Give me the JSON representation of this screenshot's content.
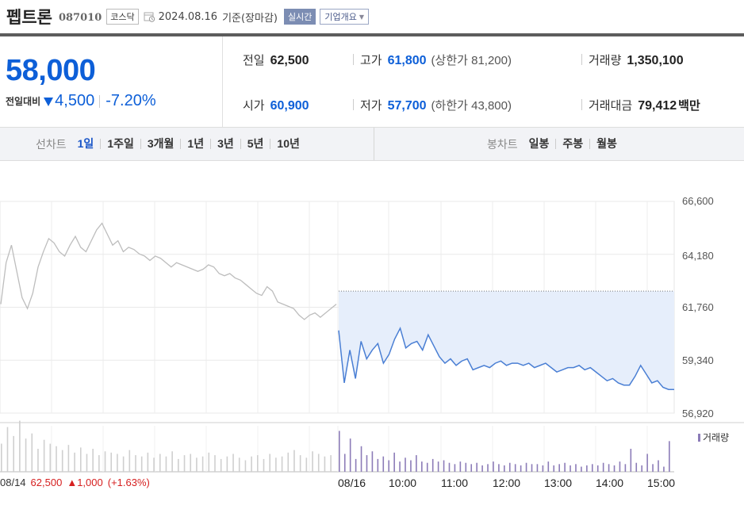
{
  "header": {
    "stock_name": "펩트론",
    "stock_code": "087010",
    "market": "코스닥",
    "date": "2024.08.16",
    "basis": "기준(장마감)",
    "realtime_label": "실시간",
    "company_info_label": "기업개요"
  },
  "price": {
    "current": "58,000",
    "change_label": "전일대비",
    "change_amount": "4,500",
    "change_percent": "-7.20%",
    "direction": "down",
    "color": "#0d5fd8"
  },
  "stats": {
    "prev_close_label": "전일",
    "prev_close": "62,500",
    "high_label": "고가",
    "high": "61,800",
    "upper_limit": "(상한가 81,200)",
    "volume_label": "거래량",
    "volume": "1,350,100",
    "open_label": "시가",
    "open": "60,900",
    "low_label": "저가",
    "low": "57,700",
    "lower_limit": "(하한가 43,800)",
    "value_label": "거래대금",
    "value": "79,412",
    "value_unit": "백만"
  },
  "tabs": {
    "line_chart_label": "선차트",
    "line_chart_periods": [
      "1일",
      "1주일",
      "3개월",
      "1년",
      "3년",
      "5년",
      "10년"
    ],
    "active_period": "1일",
    "candle_chart_label": "봉차트",
    "candle_chart_periods": [
      "일봉",
      "주봉",
      "월봉"
    ]
  },
  "chart_data": {
    "type": "line",
    "y_ticks": [
      "66,600",
      "64,180",
      "61,760",
      "59,340",
      "56,920"
    ],
    "ylim": [
      56920,
      66600
    ],
    "x_ticks": [
      "08/16",
      "10:00",
      "11:00",
      "12:00",
      "13:00",
      "14:00",
      "15:00"
    ],
    "prev_day": {
      "label": "08/14",
      "close": "62,500",
      "change": "1,000",
      "change_percent": "(+1.63%)",
      "color": "#d62020"
    },
    "volume_legend": "거래량",
    "reference_line": 62500,
    "series": [
      {
        "color": "#bdbdbd",
        "values": [
          61900,
          63800,
          64600,
          63400,
          62200,
          61700,
          62400,
          63600,
          64300,
          64900,
          64700,
          64300,
          64100,
          64600,
          65000,
          64500,
          64300,
          64800,
          65300,
          65600,
          65100,
          64600,
          64800,
          64300,
          64500,
          64400,
          64200,
          64100,
          63900,
          64100,
          64000,
          63800,
          63600,
          63800,
          63700,
          63600,
          63500,
          63400,
          63500,
          63700,
          63600,
          63300,
          63200,
          63300,
          63100,
          63000,
          62800,
          62600,
          62400,
          62300,
          62700,
          62500,
          62000,
          61900,
          61800,
          61700,
          61400,
          61200,
          61400,
          61500,
          61300,
          61500,
          61700,
          61900
        ]
      },
      {
        "color": "#4a7fd4",
        "values": [
          60700,
          58300,
          59800,
          58500,
          60200,
          59400,
          59800,
          60100,
          59200,
          59600,
          60300,
          60800,
          59900,
          60100,
          60200,
          59800,
          60500,
          60000,
          59500,
          59200,
          59400,
          59100,
          59300,
          59400,
          58900,
          59000,
          59100,
          59000,
          59200,
          59300,
          59100,
          59200,
          59200,
          59100,
          59200,
          59000,
          59100,
          59200,
          59000,
          58800,
          58900,
          59000,
          59000,
          59100,
          58900,
          59000,
          58800,
          58600,
          58400,
          58500,
          58300,
          58200,
          58200,
          58600,
          59100,
          58700,
          58300,
          58400,
          58100,
          58000,
          58000
        ]
      }
    ],
    "volume": {
      "color_prev": "#cfcfcf",
      "color_today": "#8c7cb8",
      "prev": [
        22,
        35,
        28,
        40,
        26,
        30,
        18,
        25,
        22,
        20,
        17,
        21,
        15,
        19,
        14,
        18,
        13,
        16,
        15,
        14,
        12,
        17,
        13,
        12,
        15,
        11,
        14,
        12,
        16,
        10,
        13,
        14,
        11,
        12,
        15,
        13,
        10,
        12,
        14,
        11,
        9,
        12,
        13,
        10,
        14,
        11,
        12,
        15,
        17,
        13,
        11,
        16,
        14,
        12,
        13
      ],
      "today": [
        32,
        14,
        26,
        10,
        20,
        13,
        16,
        10,
        12,
        9,
        15,
        8,
        11,
        9,
        13,
        8,
        7,
        10,
        8,
        9,
        7,
        6,
        8,
        7,
        6,
        7,
        5,
        6,
        8,
        6,
        5,
        7,
        6,
        5,
        7,
        6,
        6,
        5,
        8,
        5,
        6,
        7,
        5,
        6,
        4,
        5,
        6,
        5,
        7,
        6,
        5,
        8,
        6,
        18,
        7,
        5,
        14,
        6,
        9,
        4,
        24
      ]
    }
  }
}
